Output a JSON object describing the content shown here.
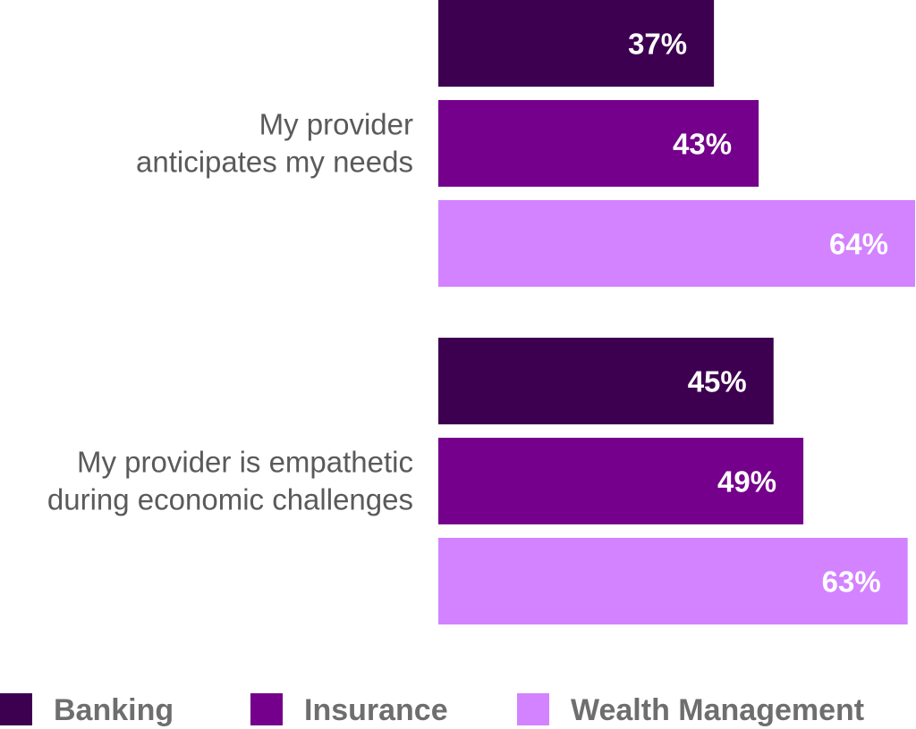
{
  "chart_data": {
    "type": "bar",
    "orientation": "horizontal",
    "categories": [
      [
        "My provider",
        "anticipates my needs"
      ],
      [
        "My provider is empathetic",
        "during economic challenges"
      ]
    ],
    "series": [
      {
        "name": "Banking",
        "color": "#3d0050",
        "values": [
          37,
          45
        ],
        "labels": [
          "37%",
          "45%"
        ]
      },
      {
        "name": "Insurance",
        "color": "#74008c",
        "values": [
          43,
          49
        ],
        "labels": [
          "43%",
          "49%"
        ]
      },
      {
        "name": "Wealth Management",
        "color": "#d383ff",
        "values": [
          64,
          63
        ],
        "labels": [
          "64%",
          "63%"
        ]
      }
    ],
    "value_unit": "%",
    "xlim": [
      0,
      64
    ],
    "grid": false,
    "legend_position": "bottom",
    "axis_label_color": "#5a5a5a"
  }
}
